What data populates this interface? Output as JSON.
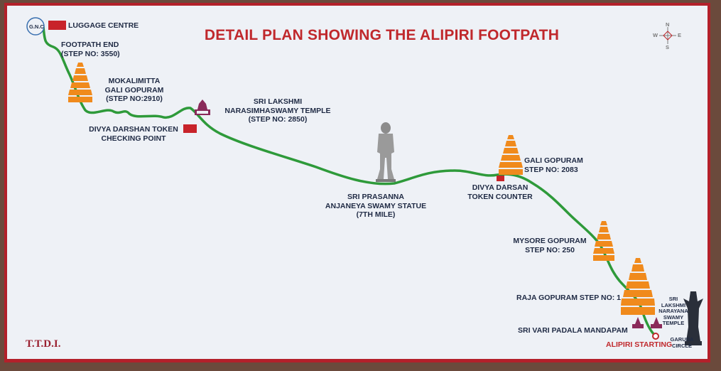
{
  "title": "DETAIL PLAN SHOWING THE ALIPIRI FOOTPATH",
  "colors": {
    "path": "#2e9a3a",
    "title": "#c0282c",
    "marker": "#c8232a",
    "gopuram": "#f08a1c",
    "text": "#1f2a44",
    "board": "#eef1f6"
  },
  "legend": {
    "luggage": "LUGGAGE CENTRE",
    "gnc": "G.N.C"
  },
  "compass": {
    "n": "N",
    "s": "S",
    "e": "E",
    "w": "W"
  },
  "labels": {
    "footpath_end": "FOOTPATH END\n(STEP NO: 3550)",
    "mokalimitta": "MOKALIMITTA\nGALI GOPURAM\n(STEP NO:2910)",
    "divya_checking": "DIVYA DARSHAN TOKEN\nCHECKING POINT",
    "lakshmi_narasimha": "SRI LAKSHMI\nNARASIMHASWAMY TEMPLE\n(STEP NO: 2850)",
    "anjaneya": "SRI PRASANNA\nANJANEYA SWAMY STATUE\n(7TH MILE)",
    "gali_gopuram": "GALI GOPURAM\nSTEP NO: 2083",
    "divya_counter": "DIVYA DARSAN\nTOKEN COUNTER",
    "mysore": "MYSORE GOPURAM\nSTEP NO: 250",
    "raja": "RAJA GOPURAM STEP NO: 1",
    "vari_padala": "SRI VARI PADALA MANDAPAM",
    "alipiri_start": "ALIPIRI STARTING",
    "lakshmi_narayana": "SRI\nLAKSHMI\nNARAYANA\nSWAMY\nTEMPLE",
    "garuda": "GARUDA\nCIRCLE",
    "ttd": "T.T.D.I."
  }
}
